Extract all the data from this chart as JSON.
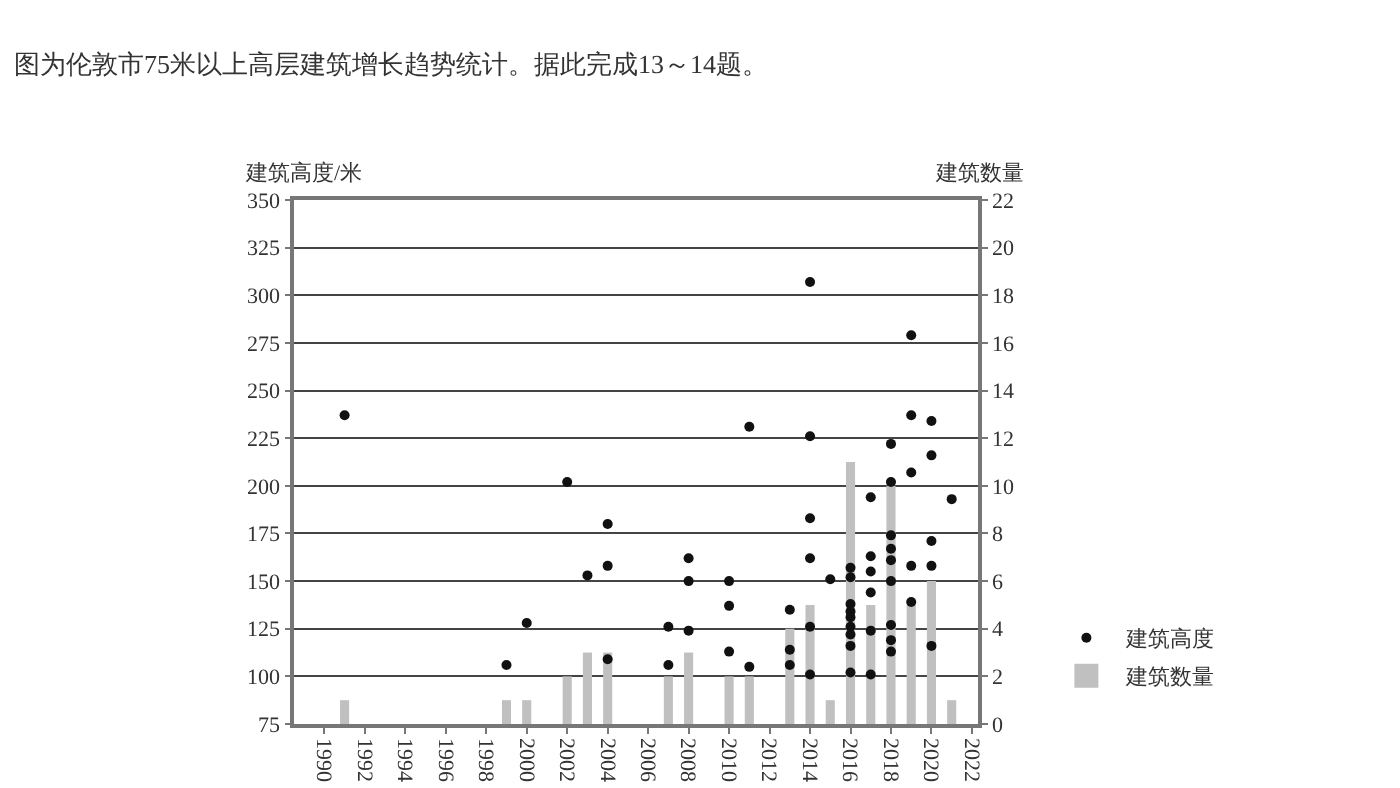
{
  "chart_data": {
    "type": "scatter",
    "title": "图为伦敦市75米以上高层建筑增长趋势统计。据此完成13～14题。",
    "ylabel": "建筑高度/米",
    "y2label": "建筑数量",
    "xlim": [
      1988.5,
      2022.3
    ],
    "xticks": [
      1990,
      1992,
      1994,
      1996,
      1998,
      2000,
      2002,
      2004,
      2006,
      2008,
      2010,
      2012,
      2014,
      2016,
      2018,
      2020,
      2022
    ],
    "ylim": [
      75,
      350
    ],
    "yticks": [
      75,
      100,
      125,
      150,
      175,
      200,
      225,
      250,
      275,
      300,
      325,
      350
    ],
    "y2lim": [
      0,
      22
    ],
    "y2ticks": [
      0,
      2,
      4,
      6,
      8,
      10,
      12,
      14,
      16,
      18,
      20,
      22
    ],
    "grid": "y",
    "legend": "bottom right",
    "marker": "circle",
    "series": [
      {
        "name": "建筑高度",
        "color": "#111111",
        "x": [
          1991,
          1999,
          2000,
          2002,
          2003,
          2004,
          2004,
          2004,
          2007,
          2007,
          2008,
          2008,
          2008,
          2010,
          2010,
          2010,
          2011,
          2011,
          2013,
          2013,
          2013,
          2014,
          2014,
          2014,
          2014,
          2014,
          2014,
          2015,
          2016,
          2016,
          2016,
          2016,
          2016,
          2016,
          2016,
          2016,
          2016,
          2017,
          2017,
          2017,
          2017,
          2017,
          2017,
          2018,
          2018,
          2018,
          2018,
          2018,
          2018,
          2018,
          2018,
          2018,
          2019,
          2019,
          2019,
          2019,
          2019,
          2020,
          2020,
          2020,
          2020,
          2020,
          2021
        ],
        "values": [
          237,
          106,
          128,
          202,
          153,
          180,
          158,
          109,
          126,
          106,
          162,
          150,
          124,
          150,
          137,
          113,
          231,
          105,
          135,
          114,
          106,
          307,
          226,
          183,
          162,
          126,
          101,
          151,
          157,
          152,
          138,
          134,
          131,
          126,
          122,
          116,
          102,
          194,
          163,
          155,
          144,
          124,
          101,
          222,
          202,
          174,
          167,
          161,
          150,
          127,
          119,
          113,
          279,
          237,
          207,
          158,
          139,
          234,
          216,
          171,
          158,
          116,
          193
        ]
      },
      {
        "name": "建筑数量",
        "type": "bar",
        "axis": "y2",
        "color": "#c0c0c0",
        "x": [
          1991,
          1999,
          2000,
          2002,
          2003,
          2004,
          2007,
          2008,
          2010,
          2011,
          2013,
          2014,
          2015,
          2016,
          2017,
          2018,
          2019,
          2020,
          2021
        ],
        "values": [
          1,
          1,
          1,
          2,
          3,
          3,
          2,
          3,
          2,
          2,
          4,
          5,
          1,
          11,
          5,
          10,
          5,
          6,
          1
        ]
      }
    ]
  }
}
